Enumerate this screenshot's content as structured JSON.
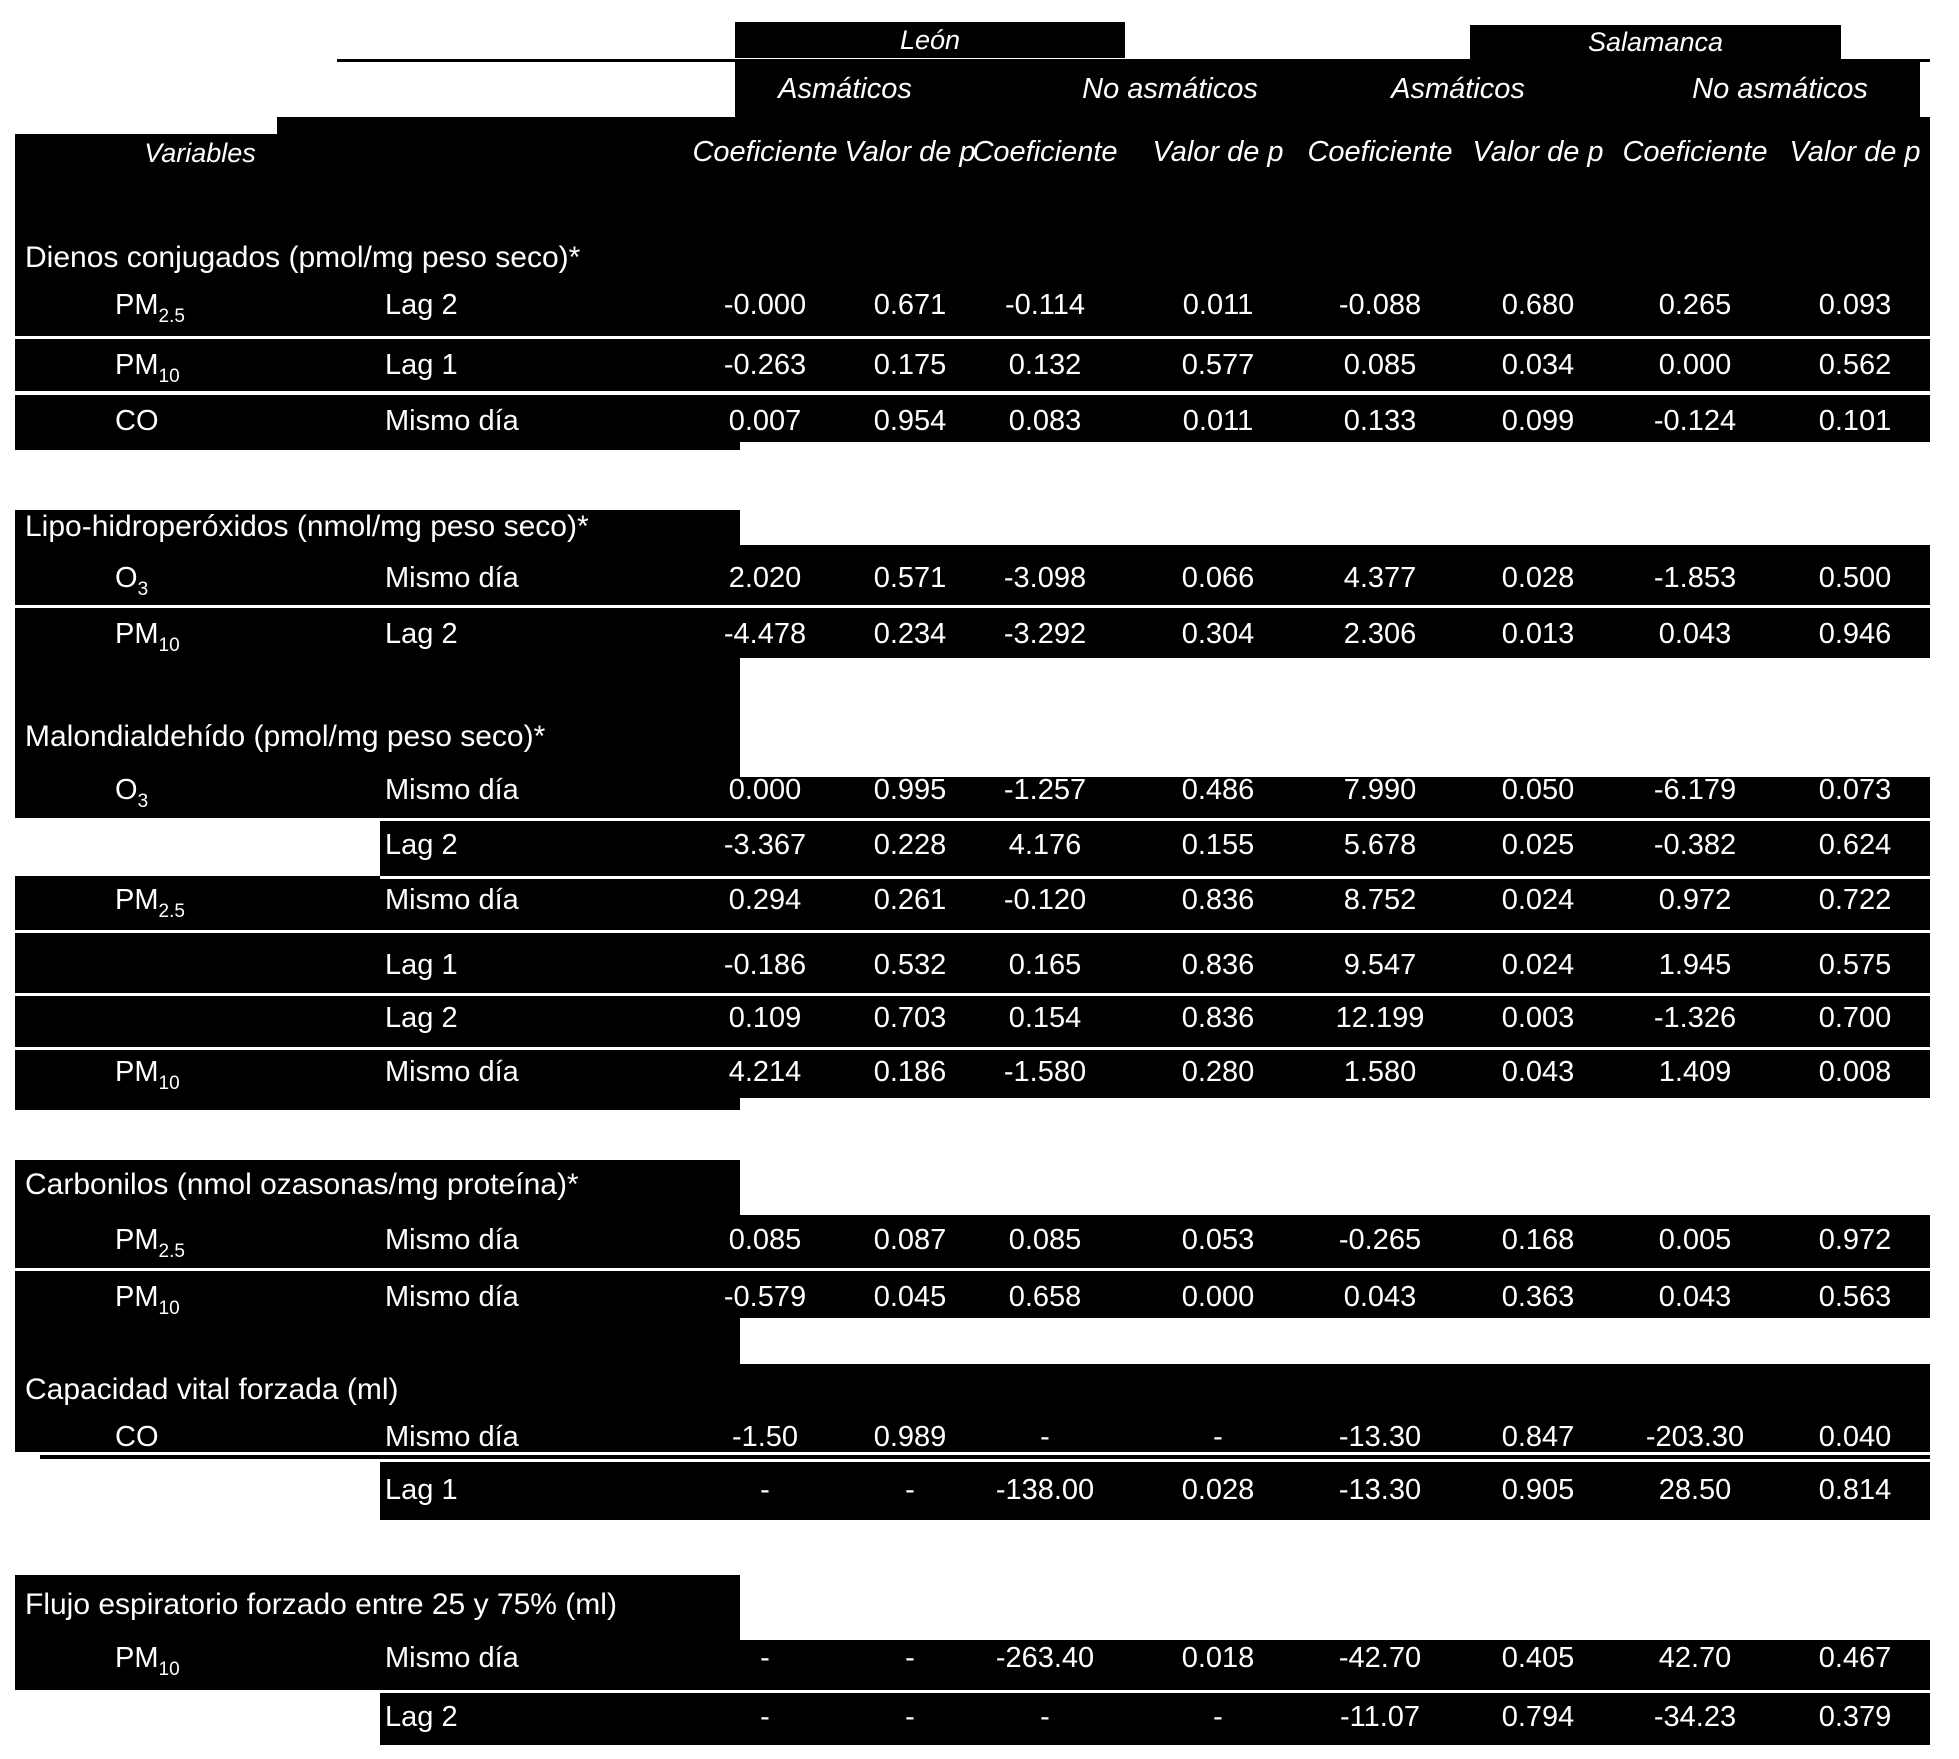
{
  "header": {
    "groups": [
      "León",
      "Salamanca"
    ],
    "subgroups": [
      "Asmáticos",
      "No asmáticos",
      "Asmáticos",
      "No asmáticos"
    ],
    "variables_label": "Variables",
    "col_labels": [
      "Coeficiente",
      "Valor de p",
      "Coeficiente",
      "Valor de p",
      "Coeficiente",
      "Valor de p",
      "Coeficiente",
      "Valor de p"
    ]
  },
  "colors": {
    "band": "#000000",
    "background": "#ffffff",
    "text": "#ffffff"
  },
  "table": {
    "sections": [
      {
        "title": "Dienos conjugados (pmol/mg peso seco)*",
        "rows": [
          {
            "var": "PM",
            "var_sub": "2.5",
            "lag": "Lag 2",
            "values": [
              "-0.000",
              "0.671",
              "-0.114",
              "0.011",
              "-0.088",
              "0.680",
              "0.265",
              "0.093"
            ]
          },
          {
            "var": "PM",
            "var_sub": "10",
            "lag": "Lag 1",
            "values": [
              "-0.263",
              "0.175",
              "0.132",
              "0.577",
              "0.085",
              "0.034",
              "0.000",
              "0.562"
            ]
          },
          {
            "var": "CO",
            "var_sub": "",
            "lag": "Mismo día",
            "values": [
              "0.007",
              "0.954",
              "0.083",
              "0.011",
              "0.133",
              "0.099",
              "-0.124",
              "0.101"
            ]
          }
        ]
      },
      {
        "title": "Lipo-hidroperóxidos (nmol/mg peso seco)*",
        "rows": [
          {
            "var": "O",
            "var_sub": "3",
            "lag": "Mismo día",
            "values": [
              "2.020",
              "0.571",
              "-3.098",
              "0.066",
              "4.377",
              "0.028",
              "-1.853",
              "0.500"
            ]
          },
          {
            "var": "PM",
            "var_sub": "10",
            "lag": "Lag 2",
            "values": [
              "-4.478",
              "0.234",
              "-3.292",
              "0.304",
              "2.306",
              "0.013",
              "0.043",
              "0.946"
            ]
          }
        ]
      },
      {
        "title": "Malondialdehído (pmol/mg peso seco)*",
        "rows": [
          {
            "var": "O",
            "var_sub": "3",
            "lag": "Mismo día",
            "values": [
              "0.000",
              "0.995",
              "-1.257",
              "0.486",
              "7.990",
              "0.050",
              "-6.179",
              "0.073"
            ]
          },
          {
            "var": "",
            "var_sub": "",
            "lag": "Lag 2",
            "values": [
              "-3.367",
              "0.228",
              "4.176",
              "0.155",
              "5.678",
              "0.025",
              "-0.382",
              "0.624"
            ]
          },
          {
            "var": "PM",
            "var_sub": "2.5",
            "lag": "Mismo día",
            "values": [
              "0.294",
              "0.261",
              "-0.120",
              "0.836",
              "8.752",
              "0.024",
              "0.972",
              "0.722"
            ]
          },
          {
            "var": "",
            "var_sub": "",
            "lag": "Lag 1",
            "values": [
              "-0.186",
              "0.532",
              "0.165",
              "0.836",
              "9.547",
              "0.024",
              "1.945",
              "0.575"
            ]
          },
          {
            "var": "",
            "var_sub": "",
            "lag": "Lag 2",
            "values": [
              "0.109",
              "0.703",
              "0.154",
              "0.836",
              "12.199",
              "0.003",
              "-1.326",
              "0.700"
            ]
          },
          {
            "var": "PM",
            "var_sub": "10",
            "lag": "Mismo día",
            "values": [
              "4.214",
              "0.186",
              "-1.580",
              "0.280",
              "1.580",
              "0.043",
              "1.409",
              "0.008"
            ]
          }
        ]
      },
      {
        "title": "Carbonilos (nmol ozasonas/mg proteína)*",
        "rows": [
          {
            "var": "PM",
            "var_sub": "2.5",
            "lag": "Mismo día",
            "values": [
              "0.085",
              "0.087",
              "0.085",
              "0.053",
              "-0.265",
              "0.168",
              "0.005",
              "0.972"
            ]
          },
          {
            "var": "PM",
            "var_sub": "10",
            "lag": "Mismo día",
            "values": [
              "-0.579",
              "0.045",
              "0.658",
              "0.000",
              "0.043",
              "0.363",
              "0.043",
              "0.563"
            ]
          }
        ]
      },
      {
        "title": "Capacidad vital forzada (ml)",
        "rows": [
          {
            "var": "CO",
            "var_sub": "",
            "lag": "Mismo día",
            "values": [
              "-1.50",
              "0.989",
              "-",
              "-",
              "-13.30",
              "0.847",
              "-203.30",
              "0.040"
            ]
          },
          {
            "var": "",
            "var_sub": "",
            "lag": "Lag 1",
            "values": [
              "-",
              "-",
              "-138.00",
              "0.028",
              "-13.30",
              "0.905",
              "28.50",
              "0.814"
            ]
          }
        ]
      },
      {
        "title": "Flujo espiratorio forzado entre 25 y 75% (ml)",
        "rows": [
          {
            "var": "PM",
            "var_sub": "10",
            "lag": "Mismo día",
            "values": [
              "-",
              "-",
              "-263.40",
              "0.018",
              "-42.70",
              "0.405",
              "42.70",
              "0.467"
            ]
          },
          {
            "var": "",
            "var_sub": "",
            "lag": "Lag 2",
            "values": [
              "-",
              "-",
              "-",
              "-",
              "-11.07",
              "0.794",
              "-34.23",
              "0.379"
            ]
          }
        ]
      }
    ]
  }
}
